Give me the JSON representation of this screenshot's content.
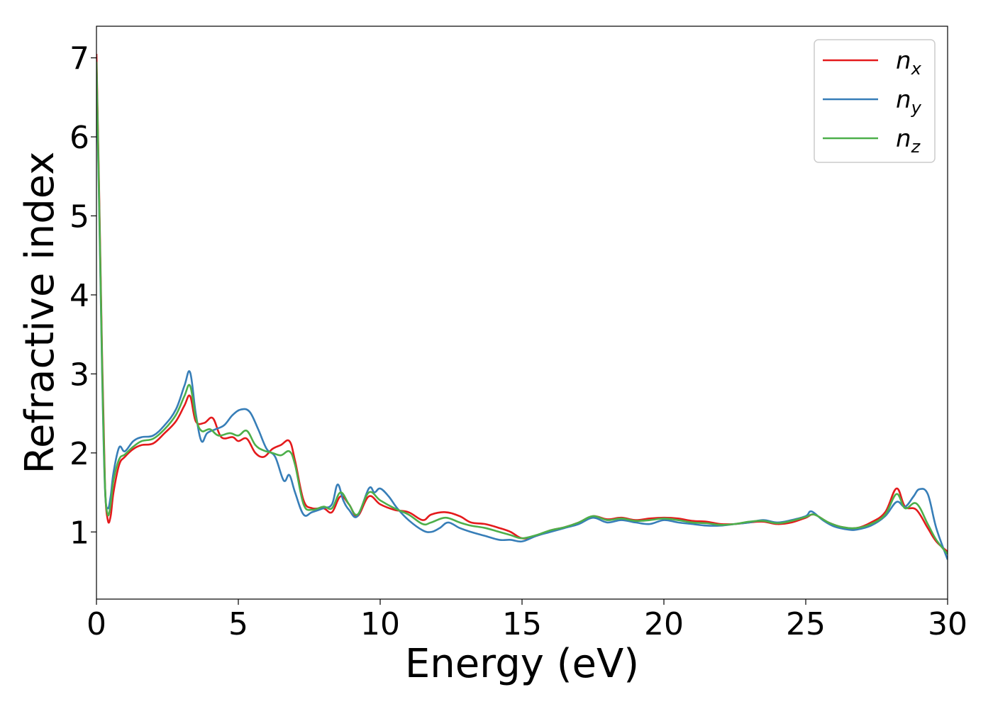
{
  "chart_data": {
    "type": "line",
    "title": "",
    "xlabel": "Energy (eV)",
    "ylabel": "Refractive index",
    "xlim": [
      0,
      30
    ],
    "ylim": [
      0.15,
      7.4
    ],
    "xticks": [
      0,
      5,
      10,
      15,
      20,
      25,
      30
    ],
    "yticks": [
      1,
      2,
      3,
      4,
      5,
      6,
      7
    ],
    "grid": false,
    "legend_position": "top-right",
    "series": [
      {
        "name": "n",
        "subscript": "x",
        "color": "#e41a1c",
        "points": [
          [
            0.0,
            7.05
          ],
          [
            0.1,
            5.2
          ],
          [
            0.2,
            3.2
          ],
          [
            0.3,
            1.6
          ],
          [
            0.4,
            1.15
          ],
          [
            0.5,
            1.2
          ],
          [
            0.6,
            1.5
          ],
          [
            0.8,
            1.85
          ],
          [
            1.0,
            1.95
          ],
          [
            1.3,
            2.05
          ],
          [
            1.6,
            2.1
          ],
          [
            2.0,
            2.12
          ],
          [
            2.4,
            2.25
          ],
          [
            2.8,
            2.4
          ],
          [
            3.1,
            2.6
          ],
          [
            3.3,
            2.72
          ],
          [
            3.5,
            2.4
          ],
          [
            3.8,
            2.38
          ],
          [
            4.1,
            2.44
          ],
          [
            4.4,
            2.2
          ],
          [
            4.8,
            2.2
          ],
          [
            5.0,
            2.15
          ],
          [
            5.3,
            2.18
          ],
          [
            5.6,
            2.0
          ],
          [
            5.9,
            1.95
          ],
          [
            6.2,
            2.05
          ],
          [
            6.5,
            2.1
          ],
          [
            6.8,
            2.15
          ],
          [
            7.0,
            1.9
          ],
          [
            7.3,
            1.4
          ],
          [
            7.6,
            1.3
          ],
          [
            8.0,
            1.3
          ],
          [
            8.3,
            1.25
          ],
          [
            8.6,
            1.45
          ],
          [
            8.9,
            1.35
          ],
          [
            9.2,
            1.2
          ],
          [
            9.6,
            1.45
          ],
          [
            10.0,
            1.35
          ],
          [
            10.5,
            1.28
          ],
          [
            11.0,
            1.25
          ],
          [
            11.5,
            1.15
          ],
          [
            11.8,
            1.22
          ],
          [
            12.3,
            1.25
          ],
          [
            12.8,
            1.2
          ],
          [
            13.2,
            1.12
          ],
          [
            13.7,
            1.1
          ],
          [
            14.2,
            1.05
          ],
          [
            14.6,
            1.0
          ],
          [
            15.0,
            0.92
          ],
          [
            15.5,
            0.95
          ],
          [
            16.0,
            1.02
          ],
          [
            16.5,
            1.06
          ],
          [
            17.0,
            1.12
          ],
          [
            17.5,
            1.2
          ],
          [
            18.0,
            1.16
          ],
          [
            18.5,
            1.18
          ],
          [
            19.0,
            1.15
          ],
          [
            19.5,
            1.17
          ],
          [
            20.0,
            1.18
          ],
          [
            20.5,
            1.17
          ],
          [
            21.0,
            1.14
          ],
          [
            21.5,
            1.13
          ],
          [
            22.0,
            1.1
          ],
          [
            22.5,
            1.1
          ],
          [
            23.0,
            1.12
          ],
          [
            23.5,
            1.13
          ],
          [
            24.0,
            1.1
          ],
          [
            24.5,
            1.12
          ],
          [
            25.0,
            1.18
          ],
          [
            25.3,
            1.22
          ],
          [
            25.8,
            1.12
          ],
          [
            26.3,
            1.06
          ],
          [
            26.8,
            1.05
          ],
          [
            27.3,
            1.12
          ],
          [
            27.8,
            1.25
          ],
          [
            28.2,
            1.55
          ],
          [
            28.5,
            1.32
          ],
          [
            28.9,
            1.28
          ],
          [
            29.3,
            1.05
          ],
          [
            29.6,
            0.88
          ],
          [
            30.0,
            0.75
          ]
        ]
      },
      {
        "name": "n",
        "subscript": "y",
        "color": "#377eb8",
        "points": [
          [
            0.0,
            6.9
          ],
          [
            0.1,
            5.0
          ],
          [
            0.2,
            3.0
          ],
          [
            0.3,
            1.55
          ],
          [
            0.4,
            1.3
          ],
          [
            0.5,
            1.45
          ],
          [
            0.6,
            1.75
          ],
          [
            0.8,
            2.07
          ],
          [
            1.0,
            2.02
          ],
          [
            1.3,
            2.15
          ],
          [
            1.6,
            2.2
          ],
          [
            2.0,
            2.22
          ],
          [
            2.4,
            2.35
          ],
          [
            2.8,
            2.55
          ],
          [
            3.1,
            2.85
          ],
          [
            3.3,
            3.02
          ],
          [
            3.5,
            2.5
          ],
          [
            3.7,
            2.15
          ],
          [
            3.9,
            2.25
          ],
          [
            4.2,
            2.3
          ],
          [
            4.5,
            2.35
          ],
          [
            4.8,
            2.48
          ],
          [
            5.1,
            2.55
          ],
          [
            5.4,
            2.52
          ],
          [
            5.7,
            2.3
          ],
          [
            6.0,
            2.05
          ],
          [
            6.3,
            1.95
          ],
          [
            6.6,
            1.65
          ],
          [
            6.8,
            1.72
          ],
          [
            7.0,
            1.5
          ],
          [
            7.3,
            1.22
          ],
          [
            7.6,
            1.25
          ],
          [
            8.0,
            1.3
          ],
          [
            8.3,
            1.35
          ],
          [
            8.5,
            1.6
          ],
          [
            8.7,
            1.4
          ],
          [
            8.9,
            1.28
          ],
          [
            9.2,
            1.2
          ],
          [
            9.6,
            1.55
          ],
          [
            9.8,
            1.5
          ],
          [
            10.0,
            1.55
          ],
          [
            10.3,
            1.45
          ],
          [
            10.6,
            1.3
          ],
          [
            11.0,
            1.15
          ],
          [
            11.5,
            1.02
          ],
          [
            11.8,
            1.0
          ],
          [
            12.1,
            1.05
          ],
          [
            12.4,
            1.12
          ],
          [
            12.8,
            1.05
          ],
          [
            13.2,
            1.0
          ],
          [
            13.7,
            0.95
          ],
          [
            14.2,
            0.9
          ],
          [
            14.6,
            0.9
          ],
          [
            15.0,
            0.88
          ],
          [
            15.5,
            0.95
          ],
          [
            16.0,
            1.0
          ],
          [
            16.5,
            1.05
          ],
          [
            17.0,
            1.1
          ],
          [
            17.5,
            1.18
          ],
          [
            18.0,
            1.12
          ],
          [
            18.5,
            1.15
          ],
          [
            19.0,
            1.12
          ],
          [
            19.5,
            1.1
          ],
          [
            20.0,
            1.15
          ],
          [
            20.5,
            1.12
          ],
          [
            21.0,
            1.1
          ],
          [
            21.5,
            1.08
          ],
          [
            22.0,
            1.08
          ],
          [
            22.5,
            1.1
          ],
          [
            23.0,
            1.12
          ],
          [
            23.5,
            1.15
          ],
          [
            24.0,
            1.12
          ],
          [
            24.5,
            1.15
          ],
          [
            25.0,
            1.2
          ],
          [
            25.2,
            1.26
          ],
          [
            25.6,
            1.15
          ],
          [
            26.0,
            1.07
          ],
          [
            26.5,
            1.03
          ],
          [
            26.8,
            1.03
          ],
          [
            27.3,
            1.08
          ],
          [
            27.8,
            1.2
          ],
          [
            28.2,
            1.38
          ],
          [
            28.5,
            1.32
          ],
          [
            28.8,
            1.45
          ],
          [
            29.0,
            1.54
          ],
          [
            29.3,
            1.48
          ],
          [
            29.6,
            1.05
          ],
          [
            30.0,
            0.65
          ]
        ]
      },
      {
        "name": "n",
        "subscript": "z",
        "color": "#4daf4a",
        "points": [
          [
            0.0,
            6.95
          ],
          [
            0.1,
            5.1
          ],
          [
            0.2,
            3.1
          ],
          [
            0.3,
            1.6
          ],
          [
            0.4,
            1.22
          ],
          [
            0.5,
            1.35
          ],
          [
            0.6,
            1.65
          ],
          [
            0.8,
            1.92
          ],
          [
            1.0,
            1.98
          ],
          [
            1.3,
            2.08
          ],
          [
            1.6,
            2.15
          ],
          [
            2.0,
            2.18
          ],
          [
            2.4,
            2.3
          ],
          [
            2.8,
            2.48
          ],
          [
            3.1,
            2.72
          ],
          [
            3.3,
            2.85
          ],
          [
            3.5,
            2.45
          ],
          [
            3.7,
            2.28
          ],
          [
            4.0,
            2.3
          ],
          [
            4.3,
            2.22
          ],
          [
            4.7,
            2.25
          ],
          [
            5.0,
            2.22
          ],
          [
            5.3,
            2.28
          ],
          [
            5.6,
            2.1
          ],
          [
            5.9,
            2.03
          ],
          [
            6.2,
            2.0
          ],
          [
            6.5,
            1.97
          ],
          [
            6.8,
            2.02
          ],
          [
            7.0,
            1.85
          ],
          [
            7.3,
            1.35
          ],
          [
            7.6,
            1.28
          ],
          [
            8.0,
            1.32
          ],
          [
            8.3,
            1.3
          ],
          [
            8.6,
            1.5
          ],
          [
            8.9,
            1.35
          ],
          [
            9.2,
            1.22
          ],
          [
            9.6,
            1.5
          ],
          [
            10.0,
            1.4
          ],
          [
            10.5,
            1.3
          ],
          [
            11.0,
            1.22
          ],
          [
            11.5,
            1.1
          ],
          [
            11.8,
            1.12
          ],
          [
            12.3,
            1.18
          ],
          [
            12.8,
            1.12
          ],
          [
            13.2,
            1.08
          ],
          [
            13.7,
            1.05
          ],
          [
            14.2,
            1.0
          ],
          [
            14.6,
            0.96
          ],
          [
            15.0,
            0.92
          ],
          [
            15.5,
            0.96
          ],
          [
            16.0,
            1.02
          ],
          [
            16.5,
            1.06
          ],
          [
            17.0,
            1.12
          ],
          [
            17.5,
            1.2
          ],
          [
            18.0,
            1.15
          ],
          [
            18.5,
            1.17
          ],
          [
            19.0,
            1.14
          ],
          [
            19.5,
            1.15
          ],
          [
            20.0,
            1.17
          ],
          [
            20.5,
            1.15
          ],
          [
            21.0,
            1.12
          ],
          [
            21.5,
            1.11
          ],
          [
            22.0,
            1.09
          ],
          [
            22.5,
            1.1
          ],
          [
            23.0,
            1.13
          ],
          [
            23.5,
            1.14
          ],
          [
            24.0,
            1.11
          ],
          [
            24.5,
            1.14
          ],
          [
            25.0,
            1.19
          ],
          [
            25.3,
            1.22
          ],
          [
            25.8,
            1.12
          ],
          [
            26.3,
            1.06
          ],
          [
            26.8,
            1.05
          ],
          [
            27.3,
            1.1
          ],
          [
            27.8,
            1.22
          ],
          [
            28.2,
            1.48
          ],
          [
            28.5,
            1.3
          ],
          [
            28.9,
            1.36
          ],
          [
            29.3,
            1.1
          ],
          [
            29.6,
            0.9
          ],
          [
            30.0,
            0.72
          ]
        ]
      }
    ]
  }
}
